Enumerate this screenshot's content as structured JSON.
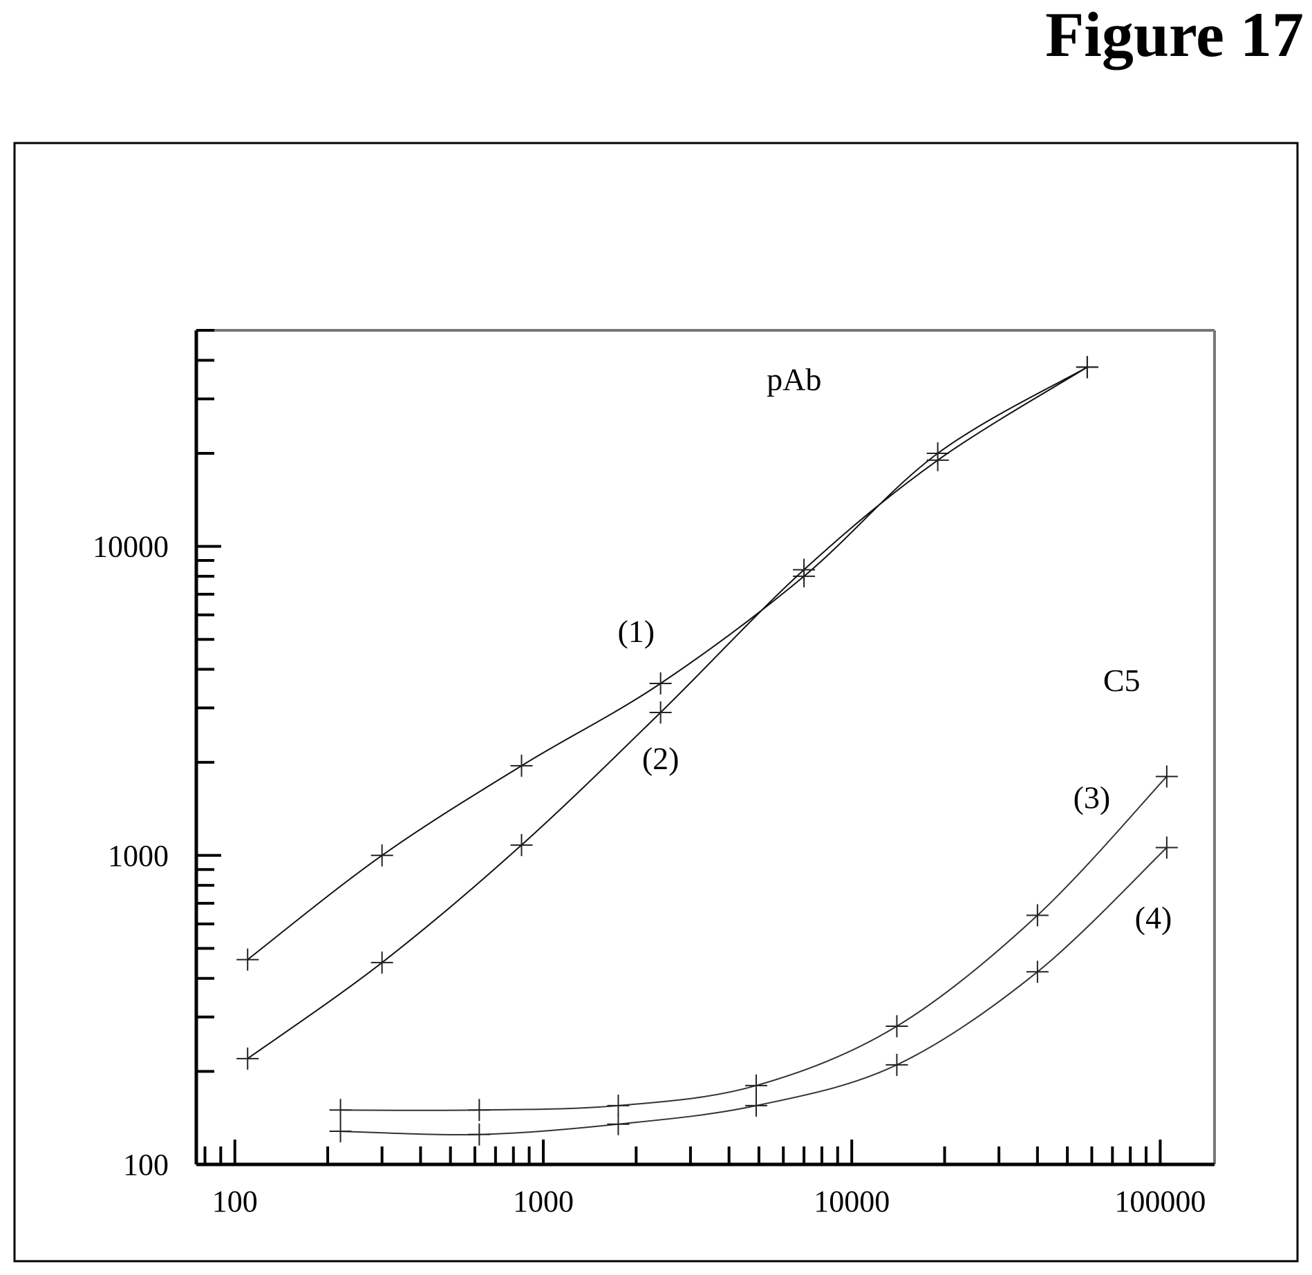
{
  "figure_title": "Figure 17",
  "chart_data": {
    "type": "line",
    "title": "",
    "xlabel": "",
    "ylabel": "",
    "x_scale": "log",
    "y_scale": "log",
    "xlim": [
      75,
      150000
    ],
    "ylim": [
      100,
      50000
    ],
    "x_ticks": [
      "100",
      "1000",
      "10000",
      "100000"
    ],
    "y_ticks": [
      "100",
      "1000",
      "10000"
    ],
    "grid": false,
    "annotations": [
      {
        "text": "pAb",
        "x": 6500,
        "y": 32000
      },
      {
        "text": "C5",
        "x": 75000,
        "y": 3400
      }
    ],
    "series": [
      {
        "name": "(1)",
        "label_at": {
          "x": 2000,
          "y": 4900
        },
        "x": [
          110,
          300,
          850,
          2400,
          7000,
          19000,
          58000
        ],
        "y": [
          460,
          1000,
          1950,
          3600,
          8000,
          20000,
          38000
        ]
      },
      {
        "name": "(2)",
        "label_at": {
          "x": 2400,
          "y": 1900
        },
        "x": [
          110,
          300,
          850,
          2400,
          7000,
          19000,
          58000
        ],
        "y": [
          220,
          450,
          1080,
          2900,
          8400,
          19000,
          38000
        ]
      },
      {
        "name": "(3)",
        "label_at": {
          "x": 60000,
          "y": 1420
        },
        "x": [
          220,
          620,
          1750,
          4900,
          14000,
          40000,
          105000
        ],
        "y": [
          150,
          150,
          155,
          180,
          280,
          640,
          1800
        ]
      },
      {
        "name": "(4)",
        "label_at": {
          "x": 95000,
          "y": 580
        },
        "x": [
          220,
          620,
          1750,
          4900,
          14000,
          40000,
          105000
        ],
        "y": [
          128,
          125,
          135,
          155,
          210,
          420,
          1060
        ]
      }
    ]
  }
}
